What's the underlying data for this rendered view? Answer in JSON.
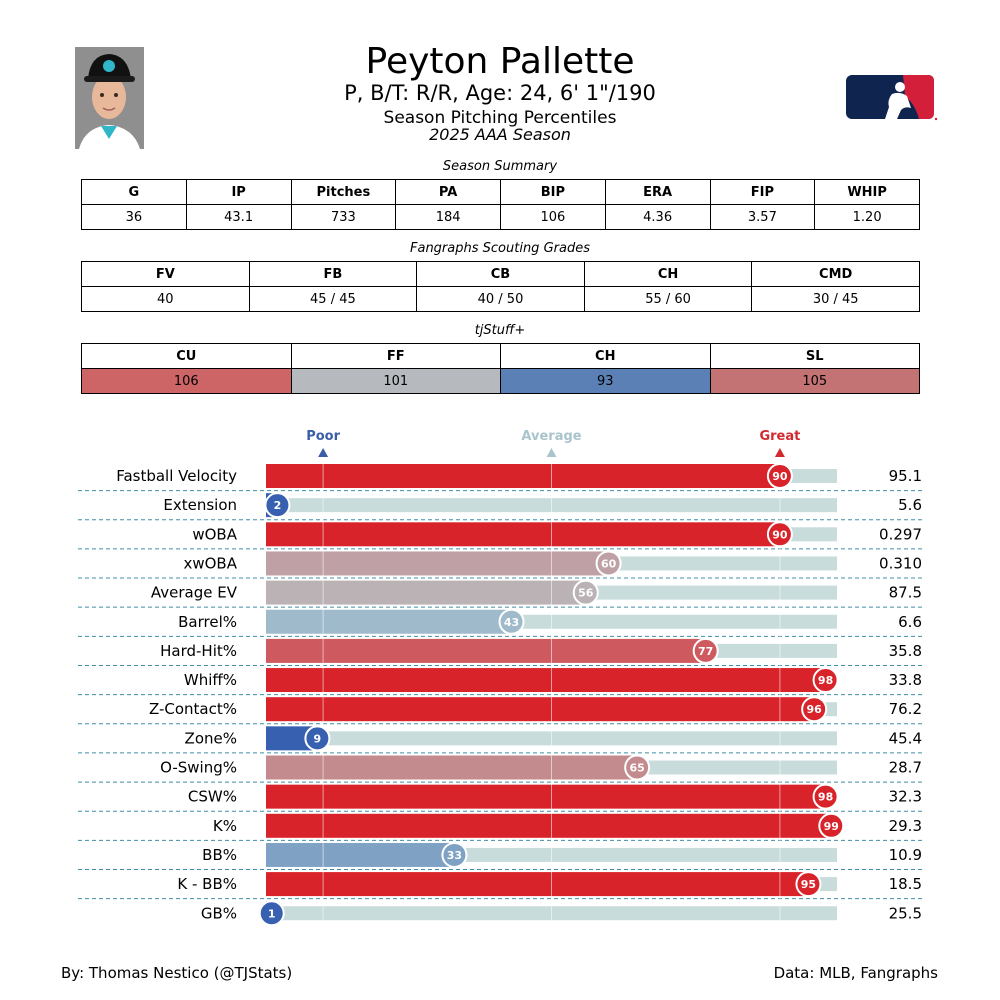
{
  "header": {
    "player_name": "Peyton Pallette",
    "player_info": "P, B/T: R/R, Age: 24, 6' 1\"/190",
    "subtitle": "Season Pitching Percentiles",
    "season": "2025 AAA Season"
  },
  "season_summary": {
    "caption": "Season Summary",
    "headers": [
      "G",
      "IP",
      "Pitches",
      "PA",
      "BIP",
      "ERA",
      "FIP",
      "WHIP"
    ],
    "values": [
      "36",
      "43.1",
      "733",
      "184",
      "106",
      "4.36",
      "3.57",
      "1.20"
    ]
  },
  "scouting_grades": {
    "caption": "Fangraphs Scouting Grades",
    "headers": [
      "FV",
      "FB",
      "CB",
      "CH",
      "CMD"
    ],
    "values": [
      "40",
      "45 / 45",
      "40 / 50",
      "55 / 60",
      "30 / 45"
    ]
  },
  "tjstuff": {
    "caption": "tjStuff+",
    "headers": [
      "CU",
      "FF",
      "CH",
      "SL"
    ],
    "values": [
      "106",
      "101",
      "93",
      "105"
    ],
    "colors": [
      "#cd6466",
      "#b6babe",
      "#5b80b6",
      "#c47374"
    ]
  },
  "chart_data": {
    "type": "bar",
    "title": "Season Pitching Percentiles",
    "scale_labels": {
      "poor": "Poor",
      "average": "Average",
      "great": "Great"
    },
    "scale_label_colors": {
      "poor": "#3a5fa8",
      "average": "#aac4cc",
      "great": "#d02a2f"
    },
    "xlim": [
      0,
      100
    ],
    "gridlines": [
      10,
      50,
      90
    ],
    "categories": [
      "Fastball Velocity",
      "Extension",
      "wOBA",
      "xwOBA",
      "Average EV",
      "Barrel%",
      "Hard-Hit%",
      "Whiff%",
      "Z-Contact%",
      "Zone%",
      "O-Swing%",
      "CSW%",
      "K%",
      "BB%",
      "K - BB%",
      "GB%"
    ],
    "percentiles": [
      90,
      2,
      90,
      60,
      56,
      43,
      77,
      98,
      96,
      9,
      65,
      98,
      99,
      33,
      95,
      1
    ],
    "stat_values": [
      "95.1",
      "5.6",
      "0.297",
      "0.310",
      "87.5",
      "6.6",
      "35.8",
      "33.8",
      "76.2",
      "45.4",
      "28.7",
      "32.3",
      "29.3",
      "10.9",
      "18.5",
      "25.5"
    ],
    "colors": [
      "#d9232a",
      "#3761b0",
      "#d9232a",
      "#bfa1a5",
      "#bab2b4",
      "#9fbbcb",
      "#ce5a60",
      "#d9232a",
      "#d9232a",
      "#3761b0",
      "#c48b8f",
      "#d9232a",
      "#d9232a",
      "#7fa2c4",
      "#d9232a",
      "#3761b0"
    ],
    "track_color": "#c8dcdc"
  },
  "footer": {
    "left": "By: Thomas Nestico (@TJStats)",
    "right": "Data: MLB, Fangraphs"
  }
}
